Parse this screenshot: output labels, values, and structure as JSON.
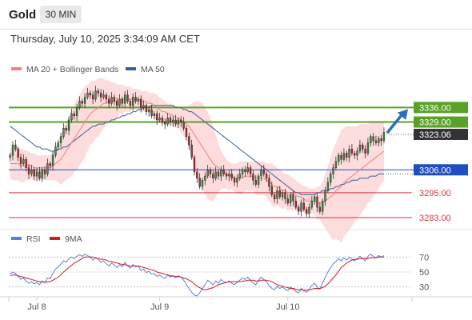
{
  "header": {
    "title": "Gold",
    "timeframe": "30 MIN"
  },
  "timestamp": "Thursday, July 10, 2025 3:34:09 AM CET",
  "colors": {
    "support_resistance_green": "#5aa12a",
    "pivot_blue": "#1f4fbf",
    "support_red": "#d9363e",
    "ma20": "#f08080",
    "bollinger_fill": "#fbd6d6",
    "ma50": "#3a5f9a",
    "current_price_label": "#333333",
    "arrow": "#2f6db5",
    "rsi_line": "#5b7fd6",
    "rsi_ma_line": "#d01c1c"
  },
  "chart_data": [
    {
      "type": "candlestick",
      "legend": [
        {
          "name": "MA 20 + Bollinger Bands",
          "color": "#f08080"
        },
        {
          "name": "MA 50",
          "color": "#3a5f9a"
        }
      ],
      "x_ticks": [
        "Jul 8",
        "Jul 9",
        "Jul 10"
      ],
      "ylim": [
        3278,
        3350
      ],
      "candle_width_minutes": 30,
      "candles": {
        "x_start": 0,
        "closes": [
          3313,
          3318,
          3316,
          3312,
          3309,
          3311,
          3307,
          3304,
          3306,
          3303,
          3305,
          3302,
          3306,
          3304,
          3309,
          3308,
          3313,
          3317,
          3319,
          3322,
          3326,
          3325,
          3330,
          3333,
          3332,
          3336,
          3339,
          3338,
          3341,
          3343,
          3342,
          3340,
          3344,
          3343,
          3341,
          3342,
          3340,
          3338,
          3341,
          3339,
          3337,
          3340,
          3338,
          3342,
          3339,
          3337,
          3341,
          3339,
          3340,
          3336,
          3337,
          3334,
          3335,
          3332,
          3333,
          3330,
          3331,
          3329,
          3328,
          3331,
          3329,
          3330,
          3328,
          3330,
          3329,
          3326,
          3322,
          3318,
          3312,
          3305,
          3302,
          3298,
          3301,
          3303,
          3306,
          3304,
          3302,
          3305,
          3303,
          3306,
          3304,
          3303,
          3304,
          3302,
          3300,
          3302,
          3304,
          3306,
          3305,
          3307,
          3304,
          3301,
          3299,
          3303,
          3306,
          3304,
          3302,
          3298,
          3294,
          3292,
          3296,
          3293,
          3295,
          3292,
          3290,
          3294,
          3291,
          3288,
          3286,
          3290,
          3287,
          3285,
          3288,
          3291,
          3293,
          3288,
          3286,
          3291,
          3296,
          3300,
          3304,
          3307,
          3310,
          3313,
          3311,
          3314,
          3312,
          3316,
          3314,
          3313,
          3315,
          3318,
          3316,
          3314,
          3319,
          3322,
          3320,
          3319,
          3321,
          3320,
          3324
        ],
        "opens": null
      },
      "ma20": [
        3309,
        3309,
        3309,
        3309,
        3308,
        3308,
        3308,
        3308,
        3308,
        3307,
        3307,
        3307,
        3307,
        3307,
        3307,
        3307,
        3308,
        3309,
        3310,
        3311,
        3313,
        3315,
        3317,
        3319,
        3321,
        3323,
        3325,
        3327,
        3329,
        3331,
        3333,
        3334,
        3335,
        3336,
        3337,
        3338,
        3338,
        3339,
        3339,
        3339,
        3339,
        3340,
        3340,
        3340,
        3340,
        3340,
        3340,
        3340,
        3340,
        3339,
        3339,
        3339,
        3338,
        3338,
        3337,
        3336,
        3335,
        3334,
        3334,
        3333,
        3333,
        3332,
        3331,
        3331,
        3330,
        3329,
        3328,
        3327,
        3325,
        3323,
        3321,
        3319,
        3317,
        3315,
        3313,
        3311,
        3309,
        3308,
        3307,
        3306,
        3305,
        3304,
        3303,
        3303,
        3302,
        3302,
        3302,
        3302,
        3303,
        3303,
        3303,
        3303,
        3302,
        3302,
        3302,
        3302,
        3301,
        3300,
        3299,
        3298,
        3298,
        3297,
        3296,
        3296,
        3295,
        3295,
        3294,
        3294,
        3293,
        3293,
        3292,
        3291,
        3291,
        3291,
        3291,
        3290,
        3290,
        3290,
        3291,
        3292,
        3293,
        3294,
        3296,
        3297,
        3298,
        3300,
        3301,
        3302,
        3303,
        3304,
        3305,
        3306,
        3307,
        3308,
        3309,
        3310,
        3311,
        3312,
        3313,
        3314,
        3315
      ],
      "bollinger_upper": [
        3316,
        3317,
        3317,
        3317,
        3316,
        3316,
        3315,
        3315,
        3314,
        3314,
        3313,
        3313,
        3313,
        3313,
        3313,
        3313,
        3315,
        3317,
        3320,
        3323,
        3326,
        3329,
        3332,
        3335,
        3337,
        3340,
        3342,
        3344,
        3346,
        3347,
        3348,
        3349,
        3349,
        3350,
        3350,
        3350,
        3349,
        3349,
        3348,
        3348,
        3347,
        3347,
        3347,
        3346,
        3346,
        3346,
        3345,
        3345,
        3345,
        3344,
        3344,
        3344,
        3343,
        3343,
        3343,
        3342,
        3341,
        3340,
        3339,
        3338,
        3338,
        3337,
        3336,
        3336,
        3336,
        3336,
        3336,
        3337,
        3338,
        3339,
        3339,
        3339,
        3338,
        3336,
        3334,
        3331,
        3327,
        3323,
        3319,
        3315,
        3313,
        3311,
        3310,
        3309,
        3309,
        3309,
        3310,
        3310,
        3310,
        3310,
        3310,
        3310,
        3310,
        3310,
        3310,
        3310,
        3309,
        3309,
        3309,
        3308,
        3307,
        3306,
        3305,
        3304,
        3304,
        3303,
        3302,
        3301,
        3300,
        3299,
        3298,
        3298,
        3297,
        3297,
        3297,
        3298,
        3298,
        3300,
        3304,
        3308,
        3312,
        3316,
        3319,
        3322,
        3325,
        3326,
        3327,
        3327,
        3327,
        3327,
        3327,
        3328,
        3328,
        3328,
        3328,
        3329,
        3329,
        3329,
        3329,
        3329,
        3329
      ],
      "bollinger_lower": [
        3302,
        3301,
        3301,
        3301,
        3300,
        3300,
        3301,
        3301,
        3302,
        3300,
        3301,
        3301,
        3301,
        3301,
        3301,
        3301,
        3301,
        3301,
        3300,
        3299,
        3300,
        3301,
        3302,
        3303,
        3305,
        3306,
        3308,
        3310,
        3312,
        3315,
        3318,
        3319,
        3321,
        3322,
        3324,
        3326,
        3327,
        3329,
        3330,
        3330,
        3331,
        3333,
        3333,
        3334,
        3334,
        3334,
        3335,
        3335,
        3335,
        3334,
        3334,
        3334,
        3333,
        3333,
        3331,
        3330,
        3329,
        3328,
        3329,
        3328,
        3328,
        3327,
        3326,
        3326,
        3324,
        3322,
        3320,
        3317,
        3312,
        3307,
        3303,
        3299,
        3296,
        3294,
        3292,
        3291,
        3291,
        3293,
        3295,
        3297,
        3297,
        3297,
        3296,
        3297,
        3295,
        3295,
        3294,
        3294,
        3296,
        3296,
        3296,
        3296,
        3294,
        3294,
        3294,
        3294,
        3293,
        3291,
        3289,
        3288,
        3289,
        3288,
        3287,
        3288,
        3286,
        3287,
        3286,
        3287,
        3286,
        3287,
        3286,
        3284,
        3285,
        3285,
        3285,
        3282,
        3282,
        3280,
        3278,
        3276,
        3274,
        3272,
        3273,
        3272,
        3271,
        3274,
        3275,
        3277,
        3279,
        3281,
        3283,
        3284,
        3286,
        3288,
        3290,
        3291,
        3293,
        3295,
        3297,
        3299,
        3301
      ],
      "ma50": [
        3327,
        3326,
        3325,
        3324,
        3323,
        3322,
        3321,
        3320,
        3319,
        3318,
        3317,
        3317,
        3316,
        3316,
        3316,
        3315,
        3315,
        3315,
        3316,
        3316,
        3317,
        3317,
        3318,
        3319,
        3320,
        3321,
        3322,
        3323,
        3324,
        3325,
        3326,
        3327,
        3327,
        3328,
        3328,
        3328,
        3329,
        3329,
        3330,
        3330,
        3331,
        3331,
        3332,
        3332,
        3333,
        3333,
        3334,
        3334,
        3335,
        3335,
        3336,
        3336,
        3336,
        3337,
        3337,
        3337,
        3337,
        3337,
        3337,
        3337,
        3337,
        3337,
        3336,
        3336,
        3336,
        3335,
        3335,
        3334,
        3334,
        3333,
        3332,
        3331,
        3330,
        3329,
        3328,
        3327,
        3326,
        3325,
        3324,
        3323,
        3322,
        3321,
        3320,
        3319,
        3318,
        3317,
        3316,
        3315,
        3314,
        3313,
        3312,
        3311,
        3310,
        3309,
        3308,
        3307,
        3306,
        3305,
        3304,
        3303,
        3302,
        3301,
        3300,
        3299,
        3298,
        3297,
        3296,
        3295,
        3295,
        3294,
        3294,
        3294,
        3294,
        3294,
        3294,
        3295,
        3295,
        3296,
        3296,
        3296,
        3297,
        3297,
        3298,
        3298,
        3299,
        3299,
        3300,
        3300,
        3301,
        3301,
        3301,
        3302,
        3302,
        3302,
        3302,
        3303,
        3303,
        3303,
        3304,
        3304,
        3304
      ],
      "horizontal_levels": [
        {
          "value": 3336.0,
          "label": "3336.00",
          "color": "#5aa12a",
          "kind": "resistance"
        },
        {
          "value": 3329.0,
          "label": "3329.00",
          "color": "#5aa12a",
          "kind": "resistance"
        },
        {
          "value": 3306.0,
          "label": "3306.00",
          "color": "#1f4fbf",
          "kind": "pivot"
        },
        {
          "value": 3295.0,
          "label": "3295.00",
          "color": "#d9363e",
          "kind": "support"
        },
        {
          "value": 3283.0,
          "label": "3283.00",
          "color": "#d9363e",
          "kind": "support"
        }
      ],
      "current_price": {
        "value": 3323.06,
        "label": "3323.06"
      },
      "projection_arrow": {
        "from_value": 3323,
        "to_value": 3336,
        "direction": "up"
      }
    },
    {
      "type": "line",
      "legend": [
        {
          "name": "RSI",
          "color": "#5b7fd6"
        },
        {
          "name": "9MA",
          "color": "#d01c1c"
        }
      ],
      "ylim": [
        20,
        80
      ],
      "y_ticks": [
        70,
        50,
        30
      ],
      "guide_levels": [
        70,
        50,
        30
      ],
      "rsi": [
        47,
        50,
        48,
        44,
        40,
        42,
        38,
        35,
        37,
        34,
        36,
        33,
        38,
        36,
        42,
        41,
        48,
        54,
        57,
        61,
        65,
        63,
        68,
        70,
        68,
        71,
        73,
        71,
        74,
        72,
        70,
        66,
        69,
        67,
        63,
        65,
        61,
        58,
        62,
        59,
        56,
        60,
        57,
        63,
        58,
        55,
        60,
        57,
        58,
        52,
        54,
        49,
        51,
        47,
        48,
        44,
        46,
        43,
        41,
        46,
        43,
        45,
        42,
        45,
        43,
        39,
        33,
        28,
        23,
        19,
        18,
        22,
        28,
        33,
        39,
        36,
        33,
        38,
        35,
        40,
        37,
        36,
        38,
        35,
        33,
        36,
        39,
        42,
        40,
        43,
        39,
        35,
        33,
        39,
        43,
        40,
        37,
        32,
        28,
        26,
        31,
        28,
        30,
        27,
        25,
        30,
        27,
        24,
        22,
        28,
        25,
        23,
        27,
        32,
        35,
        30,
        27,
        35,
        43,
        50,
        56,
        61,
        64,
        68,
        65,
        69,
        66,
        70,
        67,
        65,
        68,
        71,
        68,
        65,
        71,
        74,
        71,
        69,
        72,
        70,
        72
      ],
      "ma9": [
        45,
        46,
        46,
        45,
        44,
        43,
        42,
        41,
        40,
        39,
        38,
        37,
        37,
        36,
        37,
        37,
        39,
        41,
        43,
        46,
        50,
        53,
        56,
        59,
        62,
        64,
        66,
        68,
        70,
        70,
        70,
        70,
        69,
        68,
        67,
        67,
        66,
        64,
        64,
        63,
        62,
        61,
        60,
        60,
        59,
        58,
        58,
        58,
        58,
        57,
        56,
        55,
        54,
        53,
        52,
        50,
        49,
        48,
        47,
        46,
        45,
        45,
        44,
        44,
        43,
        42,
        41,
        39,
        37,
        34,
        31,
        29,
        27,
        26,
        27,
        28,
        29,
        31,
        33,
        34,
        35,
        36,
        37,
        37,
        37,
        37,
        37,
        38,
        38,
        39,
        39,
        39,
        38,
        38,
        39,
        39,
        39,
        38,
        37,
        35,
        33,
        32,
        31,
        30,
        29,
        28,
        28,
        27,
        26,
        26,
        26,
        26,
        26,
        27,
        28,
        28,
        28,
        29,
        31,
        34,
        38,
        42,
        46,
        51,
        56,
        59,
        62,
        64,
        66,
        67,
        67,
        68,
        68,
        68,
        68,
        69,
        69,
        69,
        70,
        70,
        70
      ]
    }
  ]
}
